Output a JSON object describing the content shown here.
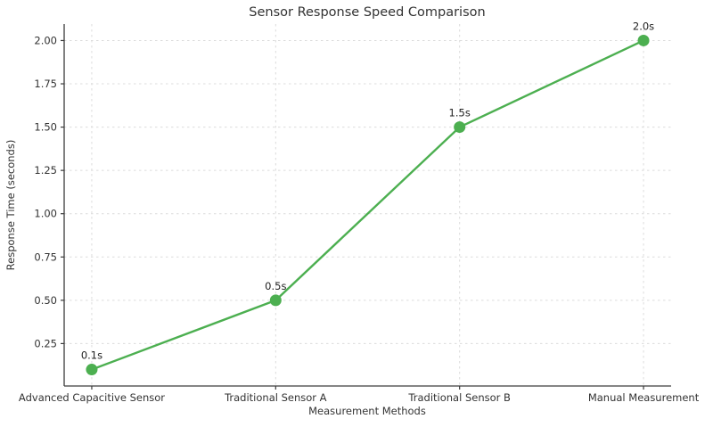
{
  "chart_data": {
    "type": "line",
    "title": "Sensor Response Speed Comparison",
    "xlabel": "Measurement Methods",
    "ylabel": "Response Time (seconds)",
    "categories": [
      "Advanced Capacitive Sensor",
      "Traditional Sensor A",
      "Traditional Sensor B",
      "Manual Measurement"
    ],
    "values": [
      0.1,
      0.5,
      1.5,
      2.0
    ],
    "point_labels": [
      "0.1s",
      "0.5s",
      "1.5s",
      "2.0s"
    ],
    "yticks": [
      0.25,
      0.5,
      0.75,
      1.0,
      1.25,
      1.5,
      1.75,
      2.0
    ],
    "ytick_labels": [
      "0.25",
      "0.50",
      "0.75",
      "1.00",
      "1.25",
      "1.50",
      "1.75",
      "2.00"
    ],
    "ylim": [
      0.005,
      2.095
    ],
    "x_margin": 0.15,
    "grid": true,
    "legend_position": "none",
    "colors": {
      "line": "#4caf50",
      "marker": "#4caf50",
      "grid": "#dcdcdc",
      "axis": "#3c3c3c",
      "text": "#333333"
    }
  }
}
